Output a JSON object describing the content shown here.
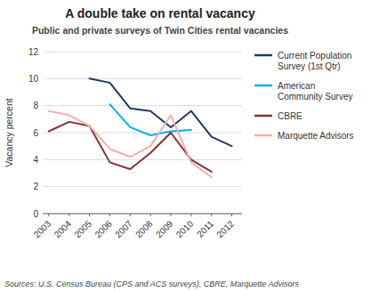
{
  "chart_data": {
    "type": "line",
    "title": "A double take on rental vacancy",
    "subtitle": "Public and private surveys of Twin Cities rental vacancies",
    "source": "Sources: U.S. Census Bureau (CPS and ACS surveys), CBRE, Marquette Advisors",
    "y_label": "Vacancy percent",
    "xlim": [
      2002.7,
      2012.5
    ],
    "xticks": [
      2003,
      2004,
      2005,
      2006,
      2007,
      2008,
      2009,
      2010,
      2011,
      2012
    ],
    "ylim": [
      0,
      12
    ],
    "yticks": [
      0,
      2,
      4,
      6,
      8,
      10,
      12
    ],
    "grid": true,
    "legend": "right",
    "series": [
      {
        "name": "Current Population\nSurvey (1st Qtr)",
        "color": "#1F3864",
        "x": [
          2005,
          2006,
          2007,
          2008,
          2009,
          2010,
          2011,
          2012
        ],
        "values": [
          10.0,
          9.7,
          7.8,
          7.6,
          6.4,
          7.6,
          5.7,
          5.0
        ]
      },
      {
        "name": "American\nCommunity Survey",
        "color": "#00B0F0",
        "x": [
          2006,
          2007,
          2008,
          2009,
          2010
        ],
        "values": [
          8.1,
          6.4,
          5.8,
          6.1,
          6.2
        ]
      },
      {
        "name": "CBRE",
        "color": "#833232",
        "x": [
          2003,
          2004,
          2005,
          2006,
          2007,
          2008,
          2009,
          2010,
          2011
        ],
        "values": [
          6.1,
          6.8,
          6.5,
          3.8,
          3.3,
          4.5,
          6.0,
          4.0,
          3.1
        ]
      },
      {
        "name": "Marquette Advisors",
        "color": "#F4AEAE",
        "x": [
          2003,
          2004,
          2005,
          2006,
          2007,
          2008,
          2009,
          2010,
          2011
        ],
        "values": [
          7.6,
          7.3,
          6.5,
          4.8,
          4.2,
          5.0,
          7.3,
          3.8,
          2.7
        ]
      }
    ]
  }
}
